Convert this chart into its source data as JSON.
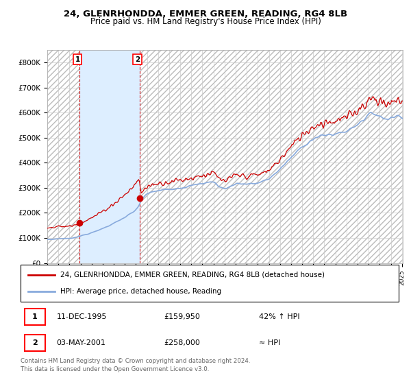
{
  "title_line1": "24, GLENRHONDDA, EMMER GREEN, READING, RG4 8LB",
  "title_line2": "Price paid vs. HM Land Registry's House Price Index (HPI)",
  "ylim": [
    0,
    850000
  ],
  "yticks": [
    0,
    100000,
    200000,
    300000,
    400000,
    500000,
    600000,
    700000,
    800000
  ],
  "ytick_labels": [
    "£0",
    "£100K",
    "£200K",
    "£300K",
    "£400K",
    "£500K",
    "£600K",
    "£700K",
    "£800K"
  ],
  "sale1_price": 159950,
  "sale1_label": "1",
  "sale1_text": "11-DEC-1995",
  "sale1_price_text": "£159,950",
  "sale1_hpi_text": "42% ↑ HPI",
  "sale2_price": 258000,
  "sale2_label": "2",
  "sale2_text": "03-MAY-2001",
  "sale2_price_text": "£258,000",
  "sale2_hpi_text": "≈ HPI",
  "legend_line1": "24, GLENRHONDDA, EMMER GREEN, READING, RG4 8LB (detached house)",
  "legend_line2": "HPI: Average price, detached house, Reading",
  "footer": "Contains HM Land Registry data © Crown copyright and database right 2024.\nThis data is licensed under the Open Government Licence v3.0.",
  "hpi_line_color": "#88aadd",
  "price_line_color": "#cc0000",
  "sale_marker_color": "#cc0000",
  "shaded_region_color": "#ddeeff",
  "hatch_color": "#bbbbbb",
  "dashed_line_color": "#cc0000",
  "x_start_year": 1993,
  "x_end_year": 2025
}
